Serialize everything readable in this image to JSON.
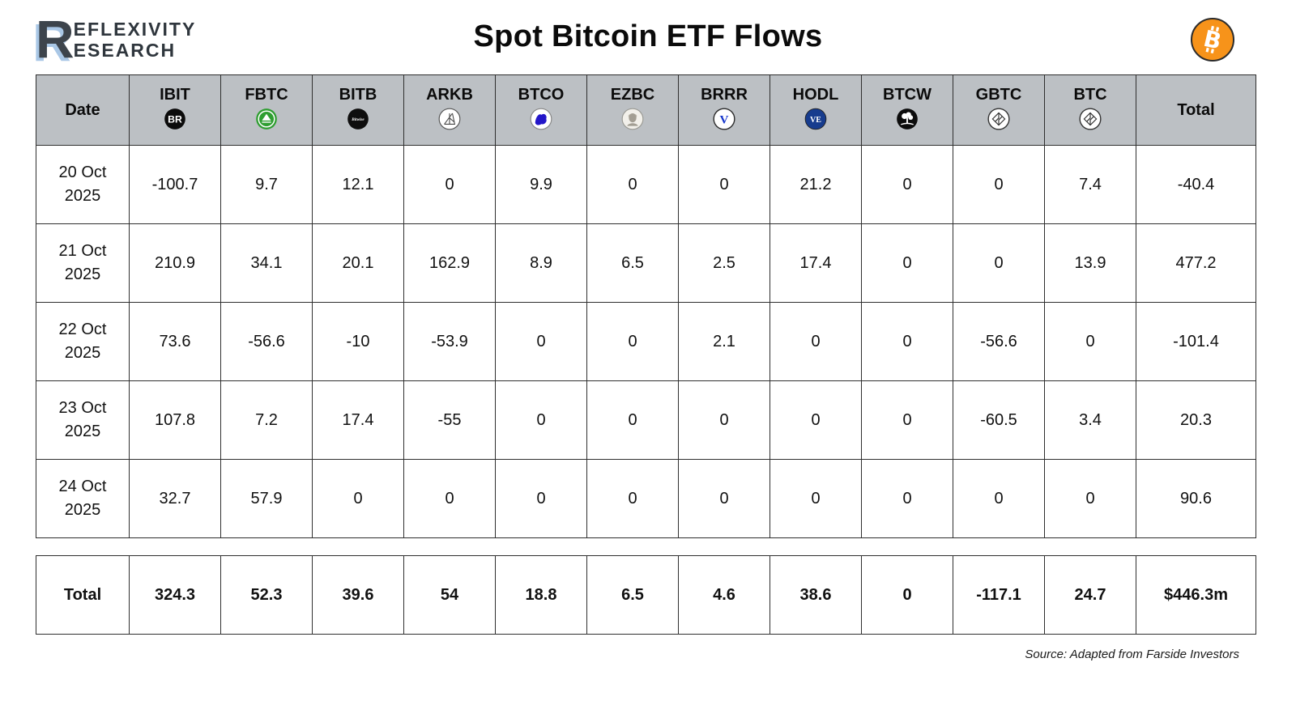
{
  "header": {
    "logo": {
      "big_letter": "R",
      "line1": "EFLEXIVITY",
      "line2": "ESEARCH"
    },
    "title": "Spot Bitcoin ETF Flows",
    "bitcoin_badge_color": "#f7931a"
  },
  "table": {
    "columns": [
      {
        "label": "Date",
        "icon": null
      },
      {
        "label": "IBIT",
        "icon": "blackrock-icon"
      },
      {
        "label": "FBTC",
        "icon": "fidelity-icon"
      },
      {
        "label": "BITB",
        "icon": "bitwise-icon"
      },
      {
        "label": "ARKB",
        "icon": "ark-icon"
      },
      {
        "label": "BTCO",
        "icon": "invesco-icon"
      },
      {
        "label": "EZBC",
        "icon": "franklin-icon"
      },
      {
        "label": "BRRR",
        "icon": "valkyrie-icon"
      },
      {
        "label": "HODL",
        "icon": "vaneck-icon"
      },
      {
        "label": "BTCW",
        "icon": "wisdomtree-icon"
      },
      {
        "label": "GBTC",
        "icon": "grayscale-icon"
      },
      {
        "label": "BTC",
        "icon": "grayscale-mini-icon"
      },
      {
        "label": "Total",
        "icon": null
      }
    ],
    "rows": [
      {
        "date_line1": "20 Oct",
        "date_line2": "2025",
        "values": [
          "-100.7",
          "9.7",
          "12.1",
          "0",
          "9.9",
          "0",
          "0",
          "21.2",
          "0",
          "0",
          "7.4",
          "-40.4"
        ]
      },
      {
        "date_line1": "21 Oct",
        "date_line2": "2025",
        "values": [
          "210.9",
          "34.1",
          "20.1",
          "162.9",
          "8.9",
          "6.5",
          "2.5",
          "17.4",
          "0",
          "0",
          "13.9",
          "477.2"
        ]
      },
      {
        "date_line1": "22 Oct",
        "date_line2": "2025",
        "values": [
          "73.6",
          "-56.6",
          "-10",
          "-53.9",
          "0",
          "0",
          "2.1",
          "0",
          "0",
          "-56.6",
          "0",
          "-101.4"
        ]
      },
      {
        "date_line1": "23 Oct",
        "date_line2": "2025",
        "values": [
          "107.8",
          "7.2",
          "17.4",
          "-55",
          "0",
          "0",
          "0",
          "0",
          "0",
          "-60.5",
          "3.4",
          "20.3"
        ]
      },
      {
        "date_line1": "24 Oct",
        "date_line2": "2025",
        "values": [
          "32.7",
          "57.9",
          "0",
          "0",
          "0",
          "0",
          "0",
          "0",
          "0",
          "0",
          "0",
          "90.6"
        ]
      }
    ],
    "total_row": {
      "label": "Total",
      "values": [
        "324.3",
        "52.3",
        "39.6",
        "54",
        "18.8",
        "6.5",
        "4.6",
        "38.6",
        "0",
        "-117.1",
        "24.7",
        "$446.3m"
      ]
    }
  },
  "footer": {
    "source": "Source: Adapted from Farside Investors"
  },
  "colors": {
    "header_bg": "#bcc0c4",
    "border": "#2f2f2f",
    "bitcoin_orange": "#f7931a",
    "logo_dark": "#3d444c",
    "logo_blue_shadow": "#a9c7e6"
  },
  "chart_data": {
    "type": "table",
    "title": "Spot Bitcoin ETF Flows",
    "columns": [
      "Date",
      "IBIT",
      "FBTC",
      "BITB",
      "ARKB",
      "BTCO",
      "EZBC",
      "BRRR",
      "HODL",
      "BTCW",
      "GBTC",
      "BTC",
      "Total"
    ],
    "rows": [
      [
        "20 Oct 2025",
        -100.7,
        9.7,
        12.1,
        0,
        9.9,
        0,
        0,
        21.2,
        0,
        0,
        7.4,
        -40.4
      ],
      [
        "21 Oct 2025",
        210.9,
        34.1,
        20.1,
        162.9,
        8.9,
        6.5,
        2.5,
        17.4,
        0,
        0,
        13.9,
        477.2
      ],
      [
        "22 Oct 2025",
        73.6,
        -56.6,
        -10,
        -53.9,
        0,
        0,
        2.1,
        0,
        0,
        -56.6,
        0,
        -101.4
      ],
      [
        "23 Oct 2025",
        107.8,
        7.2,
        17.4,
        -55,
        0,
        0,
        0,
        0,
        0,
        -60.5,
        3.4,
        20.3
      ],
      [
        "24 Oct 2025",
        32.7,
        57.9,
        0,
        0,
        0,
        0,
        0,
        0,
        0,
        0,
        0,
        90.6
      ]
    ],
    "total_row": [
      "Total",
      324.3,
      52.3,
      39.6,
      54,
      18.8,
      6.5,
      4.6,
      38.6,
      0,
      -117.1,
      24.7,
      "$446.3m"
    ],
    "source": "Source: Adapted from Farside Investors"
  }
}
